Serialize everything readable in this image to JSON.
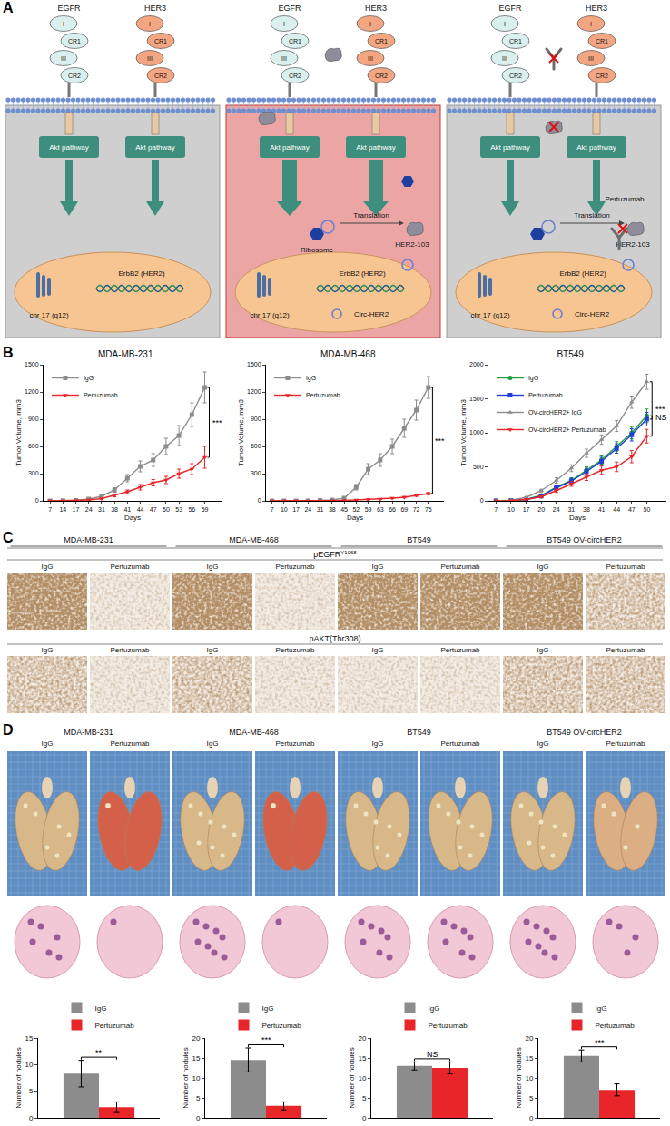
{
  "panel_labels": [
    "A",
    "B",
    "C",
    "D"
  ],
  "diagram": {
    "receptors": [
      {
        "label": "EGFR",
        "domains": [
          "I",
          "CR1",
          "III",
          "CR2"
        ]
      },
      {
        "label": "HER3",
        "domains": [
          "I",
          "CR1",
          "III",
          "CR2"
        ]
      }
    ],
    "boxes": [
      {
        "pathways": [
          "Akt pathway",
          "Akt pathway"
        ],
        "chromosome": "chr 17 (q12)",
        "gene": "ErbB2 (HER2)"
      },
      {
        "pathways": [
          "Akt pathway",
          "Akt pathway"
        ],
        "chromosome": "chr 17 (q12)",
        "gene": "ErbB2 (HER2)",
        "circ": "Circ-HER2",
        "ribosome": "Ribosome",
        "translation": "Translation",
        "protein": "HER2-103"
      },
      {
        "pathways": [
          "Akt pathway",
          "Akt pathway"
        ],
        "chromosome": "chr 17 (q12)",
        "gene": "ErbB2 (HER2)",
        "circ": "Circ-HER2",
        "translation": "Translation",
        "protein": "HER2-103",
        "antibody": "Pertuzumab"
      }
    ]
  },
  "chart_data": [
    {
      "type": "line",
      "title": "MDA-MB-231",
      "x_label": "Days",
      "y_label": "Tumor Volume, mm3",
      "categories": [
        "7",
        "14",
        "17",
        "24",
        "31",
        "38",
        "41",
        "44",
        "47",
        "50",
        "53",
        "56",
        "59"
      ],
      "series": [
        {
          "name": "IgG",
          "color": "#8c8c8c",
          "marker": "square",
          "values": [
            0,
            2,
            5,
            20,
            50,
            120,
            250,
            380,
            450,
            600,
            720,
            950,
            1250
          ],
          "errors": [
            0,
            1,
            2,
            5,
            10,
            25,
            40,
            60,
            70,
            90,
            110,
            130,
            170
          ]
        },
        {
          "name": "Pertuzumab",
          "color": "#e8262a",
          "marker": "triangle-down",
          "values": [
            0,
            1,
            3,
            10,
            25,
            60,
            100,
            150,
            200,
            230,
            300,
            350,
            480
          ],
          "errors": [
            0,
            1,
            1,
            4,
            8,
            15,
            20,
            30,
            35,
            40,
            50,
            60,
            120
          ]
        }
      ],
      "ylim": [
        0,
        1500
      ],
      "yticks": [
        0,
        300,
        600,
        900,
        1200,
        1500
      ],
      "grid": false,
      "legend": "top-left",
      "significance": [
        {
          "text": "***",
          "series": [
            "IgG",
            "Pertuzumab"
          ]
        }
      ]
    },
    {
      "type": "line",
      "title": "MDA-MB-468",
      "x_label": "Days",
      "y_label": "Tumor Volume, mm3",
      "categories": [
        "7",
        "10",
        "17",
        "24",
        "31",
        "38",
        "45",
        "52",
        "59",
        "63",
        "66",
        "69",
        "72",
        "75"
      ],
      "series": [
        {
          "name": "IgG",
          "color": "#8c8c8c",
          "marker": "square",
          "values": [
            0,
            0,
            0,
            0,
            5,
            10,
            30,
            150,
            350,
            450,
            600,
            800,
            1000,
            1250
          ],
          "errors": [
            0,
            0,
            0,
            0,
            2,
            4,
            10,
            30,
            60,
            70,
            80,
            100,
            110,
            120
          ]
        },
        {
          "name": "Pertuzumab",
          "color": "#e8262a",
          "marker": "triangle-down",
          "values": [
            0,
            0,
            0,
            0,
            0,
            2,
            5,
            10,
            15,
            20,
            30,
            40,
            60,
            80
          ],
          "errors": [
            0,
            0,
            0,
            0,
            0,
            1,
            2,
            3,
            4,
            5,
            6,
            8,
            10,
            12
          ]
        }
      ],
      "ylim": [
        0,
        1500
      ],
      "yticks": [
        0,
        300,
        600,
        900,
        1200,
        1500
      ],
      "grid": false,
      "legend": "top-left",
      "significance": [
        {
          "text": "***",
          "series": [
            "IgG",
            "Pertuzumab"
          ]
        }
      ]
    },
    {
      "type": "line",
      "title": "BT549",
      "x_label": "Days",
      "y_label": "Tumor Volume, mm3",
      "categories": [
        "7",
        "10",
        "17",
        "20",
        "24",
        "31",
        "38",
        "41",
        "44",
        "47",
        "50"
      ],
      "series": [
        {
          "name": "IgG",
          "color": "#1e9e3a",
          "marker": "circle",
          "values": [
            0,
            5,
            20,
            80,
            200,
            300,
            450,
            600,
            800,
            1000,
            1250
          ],
          "errors": [
            0,
            2,
            5,
            15,
            30,
            40,
            50,
            60,
            70,
            90,
            100
          ]
        },
        {
          "name": "Pertuzumab",
          "color": "#1f3fd6",
          "marker": "square",
          "values": [
            0,
            5,
            20,
            70,
            190,
            290,
            430,
            580,
            770,
            970,
            1200
          ],
          "errors": [
            0,
            2,
            5,
            15,
            30,
            40,
            50,
            60,
            70,
            90,
            100
          ]
        },
        {
          "name": "OV-circHER2+ IgG",
          "color": "#8c8c8c",
          "marker": "triangle-up",
          "values": [
            0,
            10,
            50,
            150,
            300,
            480,
            700,
            900,
            1100,
            1450,
            1750
          ],
          "errors": [
            0,
            3,
            10,
            20,
            40,
            50,
            60,
            70,
            80,
            90,
            110
          ]
        },
        {
          "name": "OV-circHER2+ Pertuzumab",
          "color": "#e8262a",
          "marker": "triangle-down",
          "values": [
            0,
            5,
            20,
            60,
            150,
            250,
            350,
            450,
            500,
            650,
            950
          ],
          "errors": [
            0,
            2,
            5,
            15,
            25,
            35,
            50,
            60,
            70,
            90,
            100
          ]
        }
      ],
      "ylim": [
        0,
        2000
      ],
      "yticks": [
        0,
        500,
        1000,
        1500,
        2000
      ],
      "grid": false,
      "legend": "top-left",
      "significance": [
        {
          "text": "NS",
          "series": [
            "IgG",
            "Pertuzumab"
          ]
        },
        {
          "text": "***",
          "series": [
            "OV-circHER2+ IgG",
            "OV-circHER2+ Pertuzumab"
          ]
        }
      ]
    },
    {
      "type": "bar",
      "y_label": "Number of nodules",
      "categories": [
        null
      ],
      "series": [
        {
          "name": "IgG",
          "color": "#8c8c8c",
          "values": [
            8.3
          ],
          "errors": [
            2.5
          ]
        },
        {
          "name": "Pertuzumab",
          "color": "#e8262a",
          "values": [
            2
          ],
          "errors": [
            1
          ]
        }
      ],
      "ylim": [
        0,
        15
      ],
      "yticks": [
        0,
        5,
        10,
        15
      ],
      "grid": false,
      "legend": "top",
      "tick_labels": "y",
      "significance": [
        {
          "text": "**",
          "series": [
            "IgG",
            "Pertuzumab"
          ]
        }
      ]
    },
    {
      "type": "bar",
      "y_label": "Number of nodules",
      "categories": [
        null
      ],
      "series": [
        {
          "name": "IgG",
          "color": "#8c8c8c",
          "values": [
            14.5
          ],
          "errors": [
            3
          ]
        },
        {
          "name": "Pertuzumab",
          "color": "#e8262a",
          "values": [
            3
          ],
          "errors": [
            1
          ]
        }
      ],
      "ylim": [
        0,
        20
      ],
      "yticks": [
        0,
        5,
        10,
        15,
        20
      ],
      "grid": false,
      "legend": "top",
      "tick_labels": "y",
      "significance": [
        {
          "text": "***",
          "series": [
            "IgG",
            "Pertuzumab"
          ]
        }
      ]
    },
    {
      "type": "bar",
      "y_label": "Number of nodules",
      "categories": [
        null
      ],
      "series": [
        {
          "name": "IgG",
          "color": "#8c8c8c",
          "values": [
            13
          ],
          "errors": [
            1
          ]
        },
        {
          "name": "Pertuzumab",
          "color": "#e8262a",
          "values": [
            12.5
          ],
          "errors": [
            1.5
          ]
        }
      ],
      "ylim": [
        0,
        20
      ],
      "yticks": [
        0,
        5,
        10,
        15,
        20
      ],
      "grid": false,
      "legend": "top",
      "tick_labels": "y",
      "significance": [
        {
          "text": "NS",
          "series": [
            "IgG",
            "Pertuzumab"
          ]
        }
      ]
    },
    {
      "type": "bar",
      "y_label": "Number of nodules",
      "categories": [
        null
      ],
      "series": [
        {
          "name": "IgG",
          "color": "#8c8c8c",
          "values": [
            15.5
          ],
          "errors": [
            1.5
          ]
        },
        {
          "name": "Pertuzumab",
          "color": "#e8262a",
          "values": [
            7
          ],
          "errors": [
            1.5
          ]
        }
      ],
      "ylim": [
        0,
        20
      ],
      "yticks": [
        0,
        5,
        10,
        15,
        20
      ],
      "grid": false,
      "legend": "top",
      "tick_labels": "y",
      "significance": [
        {
          "text": "***",
          "series": [
            "IgG",
            "Pertuzumab"
          ]
        }
      ]
    }
  ],
  "ihc": {
    "groups": [
      "MDA-MB-231",
      "MDA-MB-468",
      "BT549",
      "BT549 OV-circHER2"
    ],
    "conditions": [
      "IgG",
      "Pertuzumab"
    ],
    "rows": [
      {
        "label": "pEGFR",
        "superscript": "Y1068"
      },
      {
        "label": "pAKT(Thr308)"
      }
    ]
  },
  "lungs": {
    "groups": [
      "MDA-MB-231",
      "MDA-MB-468",
      "BT549",
      "BT549 OV-circHER2"
    ],
    "conditions": [
      "IgG",
      "Pertuzumab"
    ]
  }
}
